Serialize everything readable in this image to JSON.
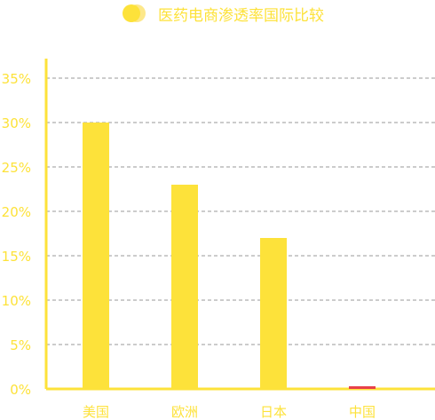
{
  "chart_data": {
    "type": "bar",
    "title": "",
    "xlabel": "",
    "ylabel": "",
    "categories": [
      "美国",
      "欧洲",
      "日本",
      "中国"
    ],
    "series": [
      {
        "name": "医药电商渗透率国际比较",
        "values": [
          30,
          23,
          17,
          0.3
        ],
        "colors": [
          "#fde23a",
          "#fde23a",
          "#fde23a",
          "#e8404a"
        ]
      }
    ],
    "ylim": [
      0,
      35
    ],
    "yticks": [
      0,
      5,
      10,
      15,
      20,
      25,
      30,
      35
    ],
    "ytick_suffix": "%",
    "grid": true,
    "grid_style": "dashed",
    "legend_position": "top-center",
    "colors": {
      "bar": "#fde23a",
      "highlight_bar": "#e8404a",
      "axis": "#fde23a",
      "label": "#fde23a",
      "grid": "#999999"
    }
  }
}
